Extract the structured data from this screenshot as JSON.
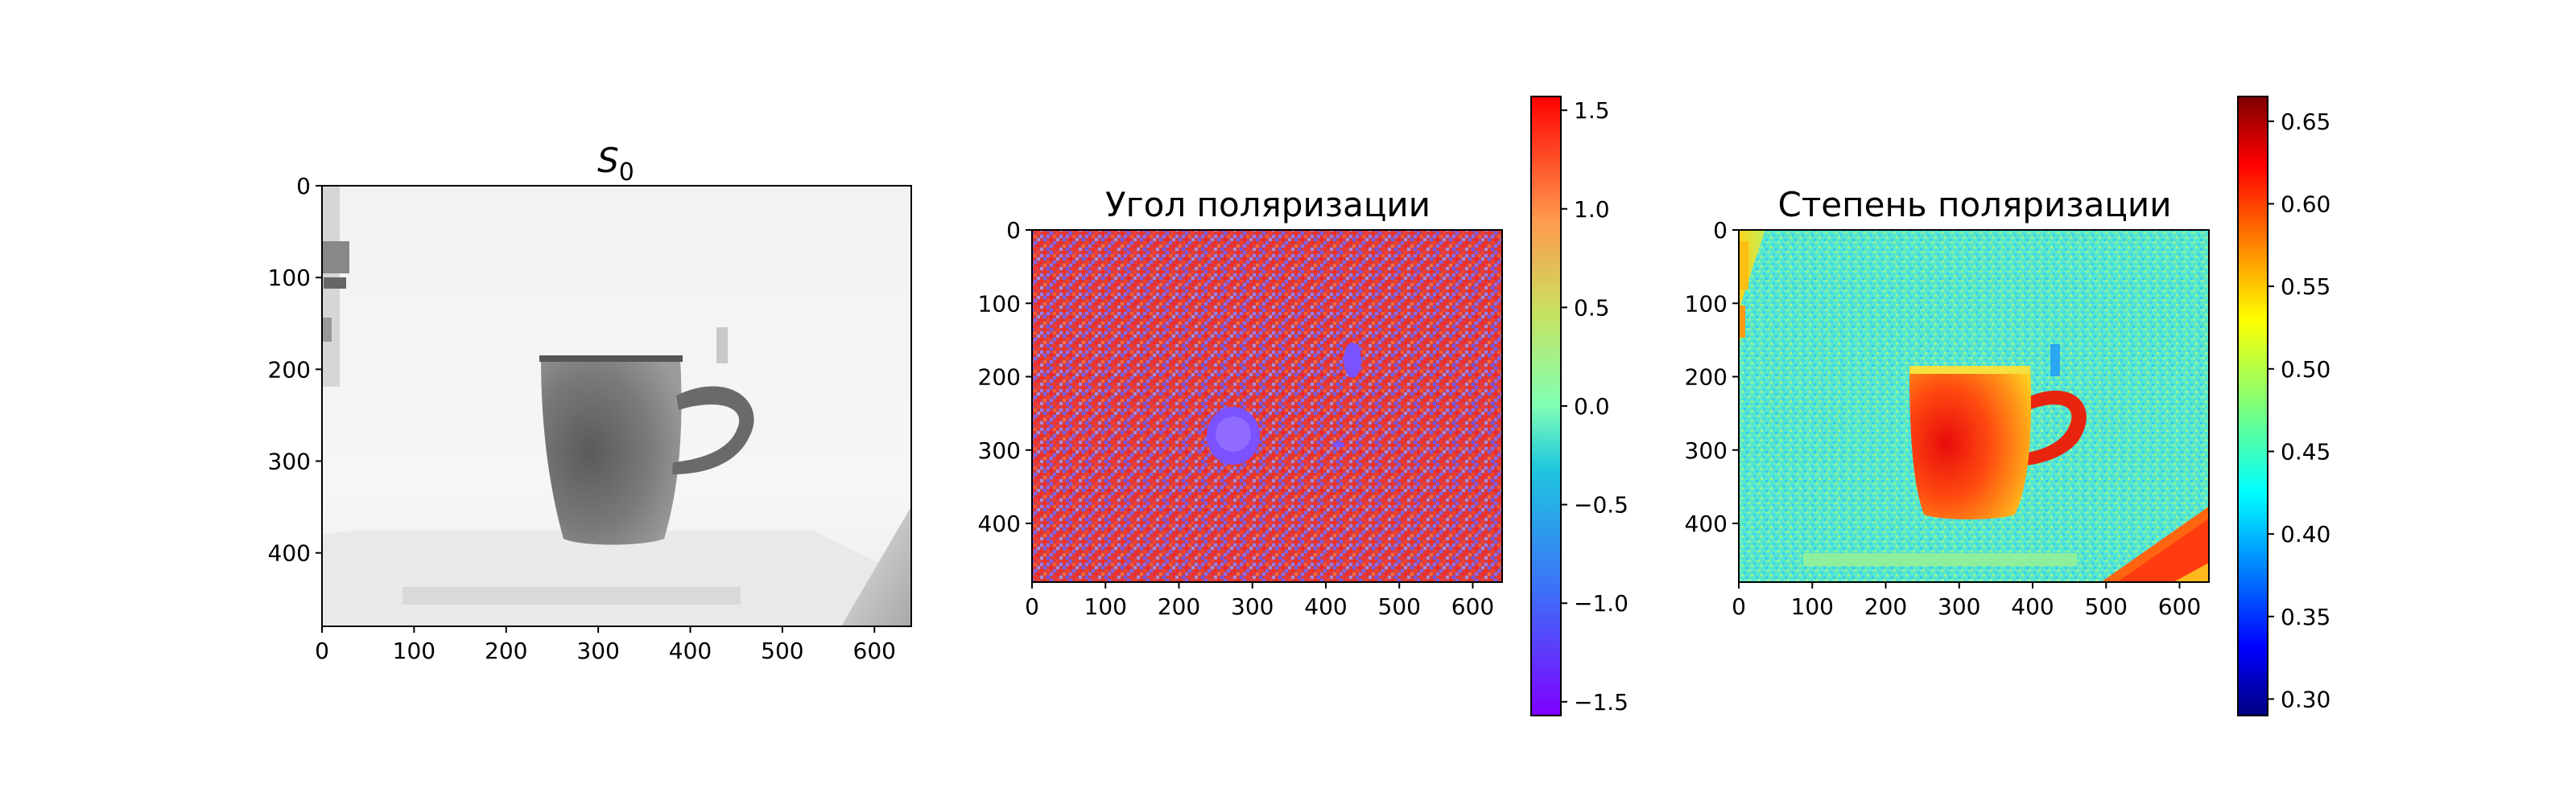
{
  "chart_data": [
    {
      "type": "heatmap",
      "title_main": "S",
      "title_sub": "0",
      "colormap": "gray",
      "xlim": [
        0,
        640
      ],
      "ylim": [
        480,
        0
      ],
      "xticks": [
        0,
        100,
        200,
        300,
        400,
        500,
        600
      ],
      "yticks": [
        0,
        100,
        200,
        300,
        400
      ],
      "colorbar": false
    },
    {
      "type": "heatmap",
      "title": "Угол поляризации",
      "colormap": "rainbow",
      "xlim": [
        0,
        640
      ],
      "ylim": [
        480,
        0
      ],
      "xticks": [
        0,
        100,
        200,
        300,
        400,
        500,
        600
      ],
      "yticks": [
        0,
        100,
        200,
        300,
        400
      ],
      "colorbar": true,
      "colorbar_range": [
        -1.57,
        1.57
      ],
      "colorbar_ticks": [
        "1.5",
        "1.0",
        "0.5",
        "0.0",
        "−0.5",
        "−1.0",
        "−1.5"
      ],
      "colorbar_tick_values": [
        1.5,
        1.0,
        0.5,
        0.0,
        -0.5,
        -1.0,
        -1.5
      ]
    },
    {
      "type": "heatmap",
      "title": "Степень поляризации",
      "colormap": "jet",
      "xlim": [
        0,
        640
      ],
      "ylim": [
        480,
        0
      ],
      "xticks": [
        0,
        100,
        200,
        300,
        400,
        500,
        600
      ],
      "yticks": [
        0,
        100,
        200,
        300,
        400
      ],
      "colorbar": true,
      "colorbar_range": [
        0.29,
        0.665
      ],
      "colorbar_ticks": [
        "0.65",
        "0.60",
        "0.55",
        "0.50",
        "0.45",
        "0.40",
        "0.35",
        "0.30"
      ],
      "colorbar_tick_values": [
        0.65,
        0.6,
        0.55,
        0.5,
        0.45,
        0.4,
        0.35,
        0.3
      ]
    }
  ],
  "colors": {
    "rainbow_red": "#e8302a",
    "rainbow_blue": "#6a5cf0",
    "jet_cyan": "#4fe8d8",
    "jet_red": "#e23a10"
  }
}
